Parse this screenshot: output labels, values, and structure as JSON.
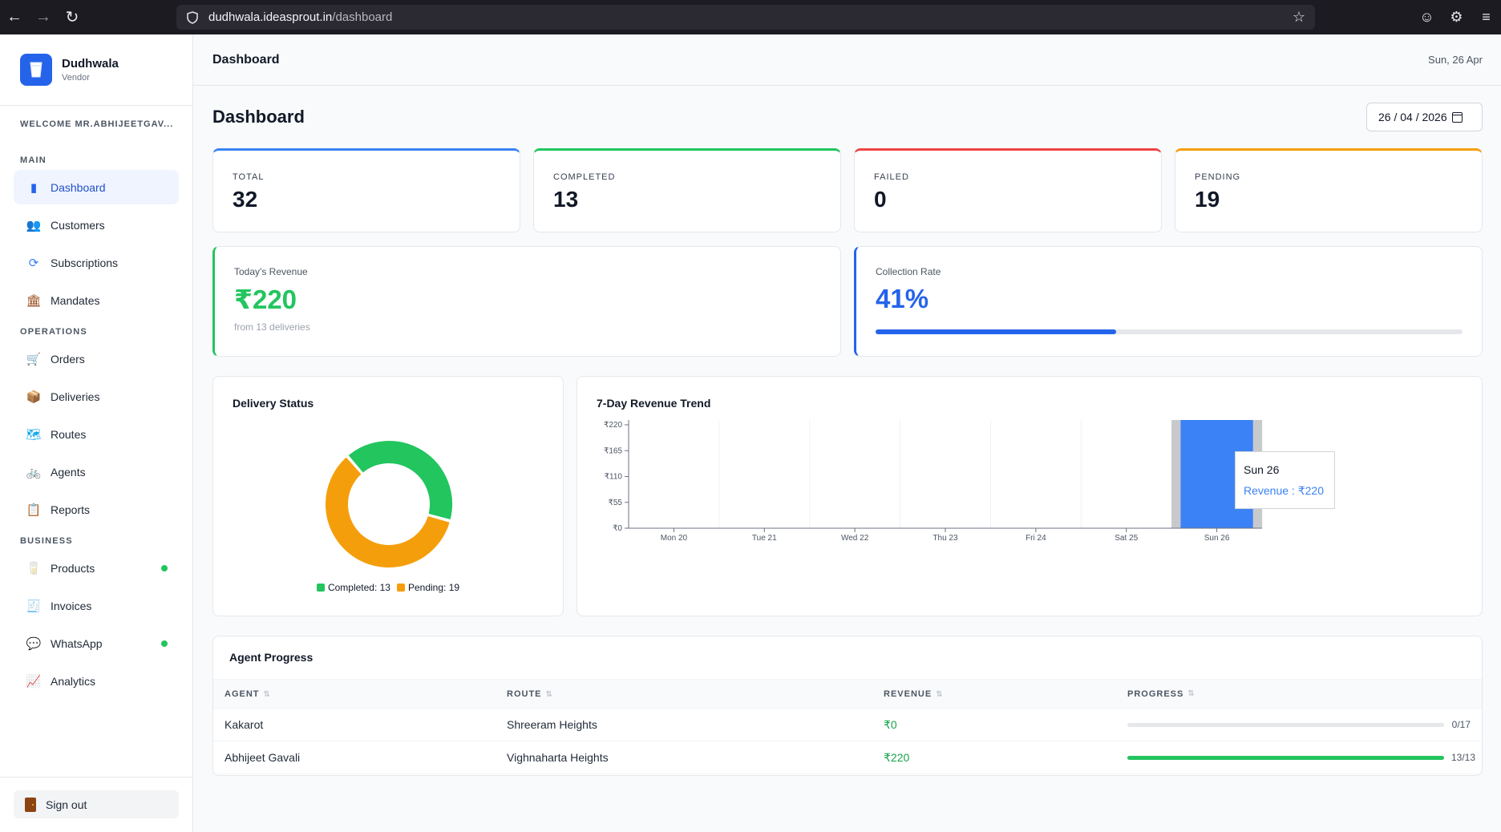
{
  "browser": {
    "url_domain": "dudhwala.ideasprout.in",
    "url_path": "/dashboard"
  },
  "brand": {
    "name": "Dudhwala",
    "role": "Vendor"
  },
  "welcome": "WELCOME MR.ABHIJEETGAV...",
  "sidebar": {
    "sections": [
      {
        "label": "MAIN",
        "items": [
          {
            "label": "Dashboard",
            "icon": "bar-chart-icon",
            "active": true
          },
          {
            "label": "Customers",
            "icon": "users-icon"
          },
          {
            "label": "Subscriptions",
            "icon": "refresh-icon"
          },
          {
            "label": "Mandates",
            "icon": "bank-icon"
          }
        ]
      },
      {
        "label": "OPERATIONS",
        "items": [
          {
            "label": "Orders",
            "icon": "cart-icon"
          },
          {
            "label": "Deliveries",
            "icon": "package-icon"
          },
          {
            "label": "Routes",
            "icon": "map-icon"
          },
          {
            "label": "Agents",
            "icon": "bicycle-icon"
          },
          {
            "label": "Reports",
            "icon": "clipboard-icon"
          }
        ]
      },
      {
        "label": "BUSINESS",
        "items": [
          {
            "label": "Products",
            "icon": "cup-icon",
            "dot": true
          },
          {
            "label": "Invoices",
            "icon": "receipt-icon"
          },
          {
            "label": "WhatsApp",
            "icon": "chat-icon",
            "dot": true
          },
          {
            "label": "Analytics",
            "icon": "trend-icon"
          }
        ]
      }
    ],
    "signout": "Sign out"
  },
  "topbar": {
    "title": "Dashboard",
    "date": "Sun, 26 Apr"
  },
  "page": {
    "title": "Dashboard",
    "date_value": "26 / 04 / 2026"
  },
  "stats": [
    {
      "label": "TOTAL",
      "value": "32",
      "color": "#3b82f6"
    },
    {
      "label": "COMPLETED",
      "value": "13",
      "color": "#22c55e"
    },
    {
      "label": "FAILED",
      "value": "0",
      "color": "#ef4444"
    },
    {
      "label": "PENDING",
      "value": "19",
      "color": "#f59e0b"
    }
  ],
  "revenue": {
    "label": "Today's Revenue",
    "value": "₹220",
    "sub": "from 13 deliveries",
    "color": "#22c55e"
  },
  "collection": {
    "label": "Collection Rate",
    "value": "41%",
    "rate": 0.41,
    "color": "#2563eb"
  },
  "delivery_status": {
    "title": "Delivery Status",
    "legend": [
      {
        "text": "Completed: 13",
        "color": "#22c55e"
      },
      {
        "text": "Pending: 19",
        "color": "#f59e0b"
      }
    ]
  },
  "trend": {
    "title": "7-Day Revenue Trend",
    "tooltip": {
      "title": "Sun 26",
      "value": "Revenue : ₹220"
    }
  },
  "chart_data": [
    {
      "type": "pie",
      "title": "Delivery Status",
      "categories": [
        "Completed",
        "Pending"
      ],
      "values": [
        13,
        19
      ],
      "colors": [
        "#22c55e",
        "#f59e0b"
      ],
      "legend": "bottom"
    },
    {
      "type": "bar",
      "title": "7-Day Revenue Trend",
      "categories": [
        "Mon 20",
        "Tue 21",
        "Wed 22",
        "Thu 23",
        "Fri 24",
        "Sat 25",
        "Sun 26"
      ],
      "values": [
        0,
        0,
        0,
        0,
        0,
        0,
        220
      ],
      "yticks": [
        "₹0",
        "₹55",
        "₹110",
        "₹165",
        "₹220"
      ],
      "ylim": [
        0,
        220
      ],
      "color": "#3b82f6",
      "grid": true
    }
  ],
  "agents": {
    "title": "Agent Progress",
    "columns": [
      "AGENT",
      "ROUTE",
      "REVENUE",
      "PROGRESS"
    ],
    "rows": [
      {
        "agent": "Kakarot",
        "route": "Shreeram Heights",
        "revenue": "₹0",
        "progress": "0/17",
        "fraction": 0
      },
      {
        "agent": "Abhijeet Gavali",
        "route": "Vighnaharta Heights",
        "revenue": "₹220",
        "progress": "13/13",
        "fraction": 1
      }
    ]
  }
}
